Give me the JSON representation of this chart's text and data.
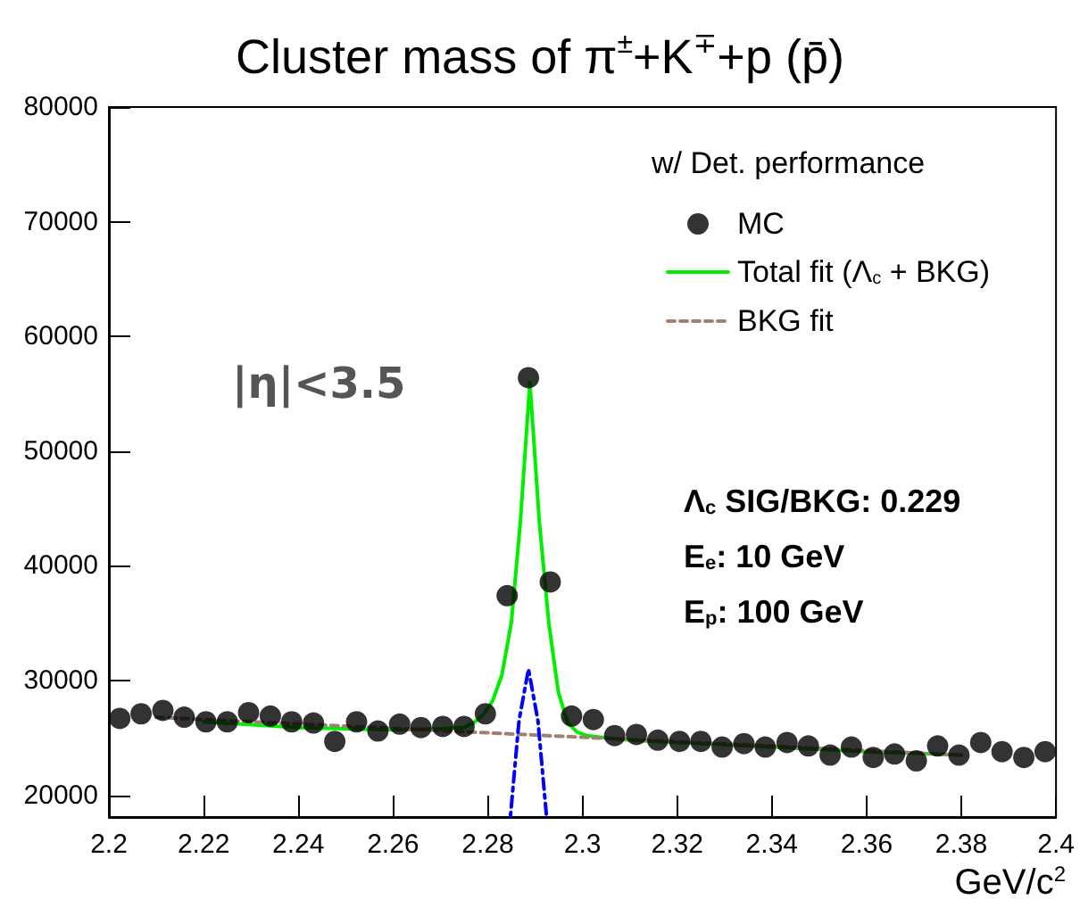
{
  "chart_data": {
    "type": "scatter",
    "title": "Cluster mass of π$^{±}$+K$^{∓}$+p (p̄)",
    "xlabel": "GeV/c$^{2}$",
    "legend_title": "w/ Det. performance",
    "annotations": [
      "|η|<3.5",
      "Λ$_{c}$ SIG/BKG: 0.229",
      "E$_{e}$: 10 GeV",
      "E$_{p}$: 100 GeV"
    ],
    "xlim": [
      2.2,
      2.4
    ],
    "xticks": [
      2.2,
      2.22,
      2.24,
      2.26,
      2.28,
      2.3,
      2.32,
      2.34,
      2.36,
      2.38,
      2.4
    ],
    "ylim": [
      18100,
      80000
    ],
    "yticks": [
      20000,
      30000,
      40000,
      50000,
      60000,
      70000,
      80000
    ],
    "legend": "top right",
    "series": [
      {
        "name": "MC",
        "marker": "circle",
        "color": "#000000",
        "x": [
          2.2023,
          2.2068,
          2.2114,
          2.2159,
          2.2205,
          2.225,
          2.2295,
          2.2341,
          2.2386,
          2.2432,
          2.2477,
          2.2523,
          2.2568,
          2.2614,
          2.2659,
          2.2705,
          2.275,
          2.2795,
          2.2841,
          2.2886,
          2.2932,
          2.2977,
          2.3023,
          2.3068,
          2.3114,
          2.3159,
          2.3205,
          2.325,
          2.3295,
          2.3341,
          2.3386,
          2.3432,
          2.3477,
          2.3523,
          2.3568,
          2.3614,
          2.3659,
          2.3705,
          2.375,
          2.3795,
          2.3841,
          2.3886,
          2.3932,
          2.3977
        ],
        "values": [
          26700,
          27100,
          27400,
          26800,
          26400,
          26400,
          27200,
          26900,
          26400,
          26300,
          24700,
          26400,
          25600,
          26200,
          25900,
          26000,
          26000,
          27100,
          37400,
          56400,
          38600,
          26900,
          26600,
          25200,
          25300,
          24800,
          24700,
          24700,
          24200,
          24500,
          24200,
          24600,
          24300,
          23500,
          24200,
          23300,
          23600,
          23000,
          24300,
          23500,
          24600,
          23800,
          23300,
          23800
        ]
      },
      {
        "name": "Total fit (Λ$_{c}$ + BKG)",
        "type": "line",
        "marker": "none",
        "color": "#00ee00",
        "line_style": "solid",
        "x": [
          2.22,
          2.24,
          2.26,
          2.27,
          2.275,
          2.277,
          2.279,
          2.281,
          2.283,
          2.285,
          2.2869,
          2.2889,
          2.2909,
          2.2929,
          2.2949,
          2.2969,
          2.2989,
          2.3009,
          2.305,
          2.31,
          2.32,
          2.34,
          2.36,
          2.38
        ],
        "values": [
          26400,
          25900,
          25700,
          25800,
          25900,
          26300,
          27000,
          28200,
          30500,
          35100,
          43900,
          56000,
          43800,
          35000,
          29000,
          26300,
          25500,
          25200,
          25000,
          24800,
          24600,
          24200,
          23800,
          23500
        ]
      },
      {
        "name": "BKG fit",
        "type": "line",
        "marker": "none",
        "color": "#a08070",
        "line_style": "dashed",
        "x": [
          2.21,
          2.38
        ],
        "values": [
          26800,
          23500
        ]
      },
      {
        "type": "line",
        "marker": "none",
        "color": "#0000ff",
        "line_style": "dotted",
        "x": [
          2.2848,
          2.2866,
          2.2886,
          2.2906,
          2.2924
        ],
        "values": [
          18200,
          26500,
          31000,
          26500,
          18200
        ]
      }
    ]
  }
}
